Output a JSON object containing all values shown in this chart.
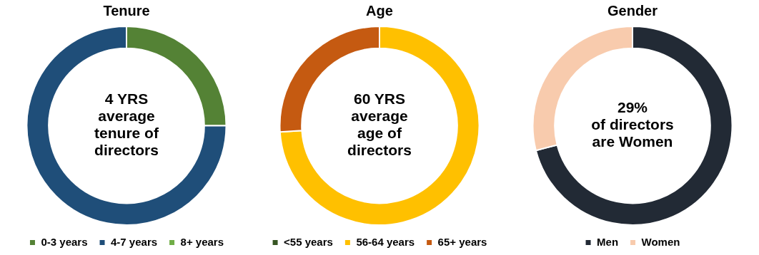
{
  "chart_data": [
    {
      "type": "donut",
      "title": "Tenure",
      "categories": [
        "0-3 years",
        "4-7 years",
        "8+ years"
      ],
      "values": [
        25,
        75,
        0
      ],
      "colors": [
        "#548235",
        "#1f4e79",
        "#70ad47"
      ],
      "legend": "bottom",
      "annotations": [
        "4 YRS\naverage\ntenure of\ndirectors"
      ]
    },
    {
      "type": "donut",
      "title": "Age",
      "categories": [
        "<55 years",
        "56-64 years",
        "65+ years"
      ],
      "values": [
        0,
        74,
        26
      ],
      "colors": [
        "#375623",
        "#ffc000",
        "#c55a11"
      ],
      "legend": "bottom",
      "annotations": [
        "60 YRS\naverage\nage of\ndirectors"
      ]
    },
    {
      "type": "donut",
      "title": "Gender",
      "categories": [
        "Men",
        "Women"
      ],
      "values": [
        71,
        29
      ],
      "colors": [
        "#222a35",
        "#f8cbad"
      ],
      "legend": "bottom",
      "annotations": [
        "29%\nof directors\nare Women"
      ]
    }
  ]
}
